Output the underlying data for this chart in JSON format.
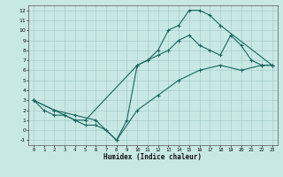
{
  "xlabel": "Humidex (Indice chaleur)",
  "xlim": [
    -0.5,
    23.5
  ],
  "ylim": [
    -1.5,
    12.5
  ],
  "xticks": [
    0,
    1,
    2,
    3,
    4,
    5,
    6,
    7,
    8,
    9,
    10,
    11,
    12,
    13,
    14,
    15,
    16,
    17,
    18,
    19,
    20,
    21,
    22,
    23
  ],
  "yticks": [
    -1,
    0,
    1,
    2,
    3,
    4,
    5,
    6,
    7,
    8,
    9,
    10,
    11,
    12
  ],
  "bg_color": "#c8e8e4",
  "grid_color": "#a0c8c4",
  "line_color": "#1a6660",
  "line1_x": [
    0,
    1,
    2,
    3,
    4,
    5,
    6,
    7,
    8,
    9,
    10,
    11,
    12,
    13,
    14,
    15,
    16,
    17,
    18,
    23
  ],
  "line1_y": [
    3,
    2,
    1.5,
    1.5,
    1,
    0.5,
    0.5,
    0,
    -1,
    1,
    6.5,
    7,
    8,
    10,
    10.5,
    12,
    12,
    11.5,
    10.5,
    6.5
  ],
  "line2_x": [
    0,
    2,
    3,
    4,
    5,
    10,
    11,
    12,
    13,
    14,
    15,
    16,
    17,
    18,
    19,
    20,
    21,
    22,
    23
  ],
  "line2_y": [
    3,
    2,
    1.5,
    1,
    1,
    6.5,
    7,
    7.5,
    8,
    9,
    9.5,
    8.5,
    8,
    7.5,
    9.5,
    8.5,
    7,
    6.5,
    6.5
  ],
  "line3_x": [
    0,
    2,
    4,
    6,
    8,
    10,
    12,
    14,
    16,
    18,
    20,
    22,
    23
  ],
  "line3_y": [
    3,
    2,
    1.5,
    1,
    -1,
    2,
    3.5,
    5,
    6,
    6.5,
    6,
    6.5,
    6.5
  ]
}
